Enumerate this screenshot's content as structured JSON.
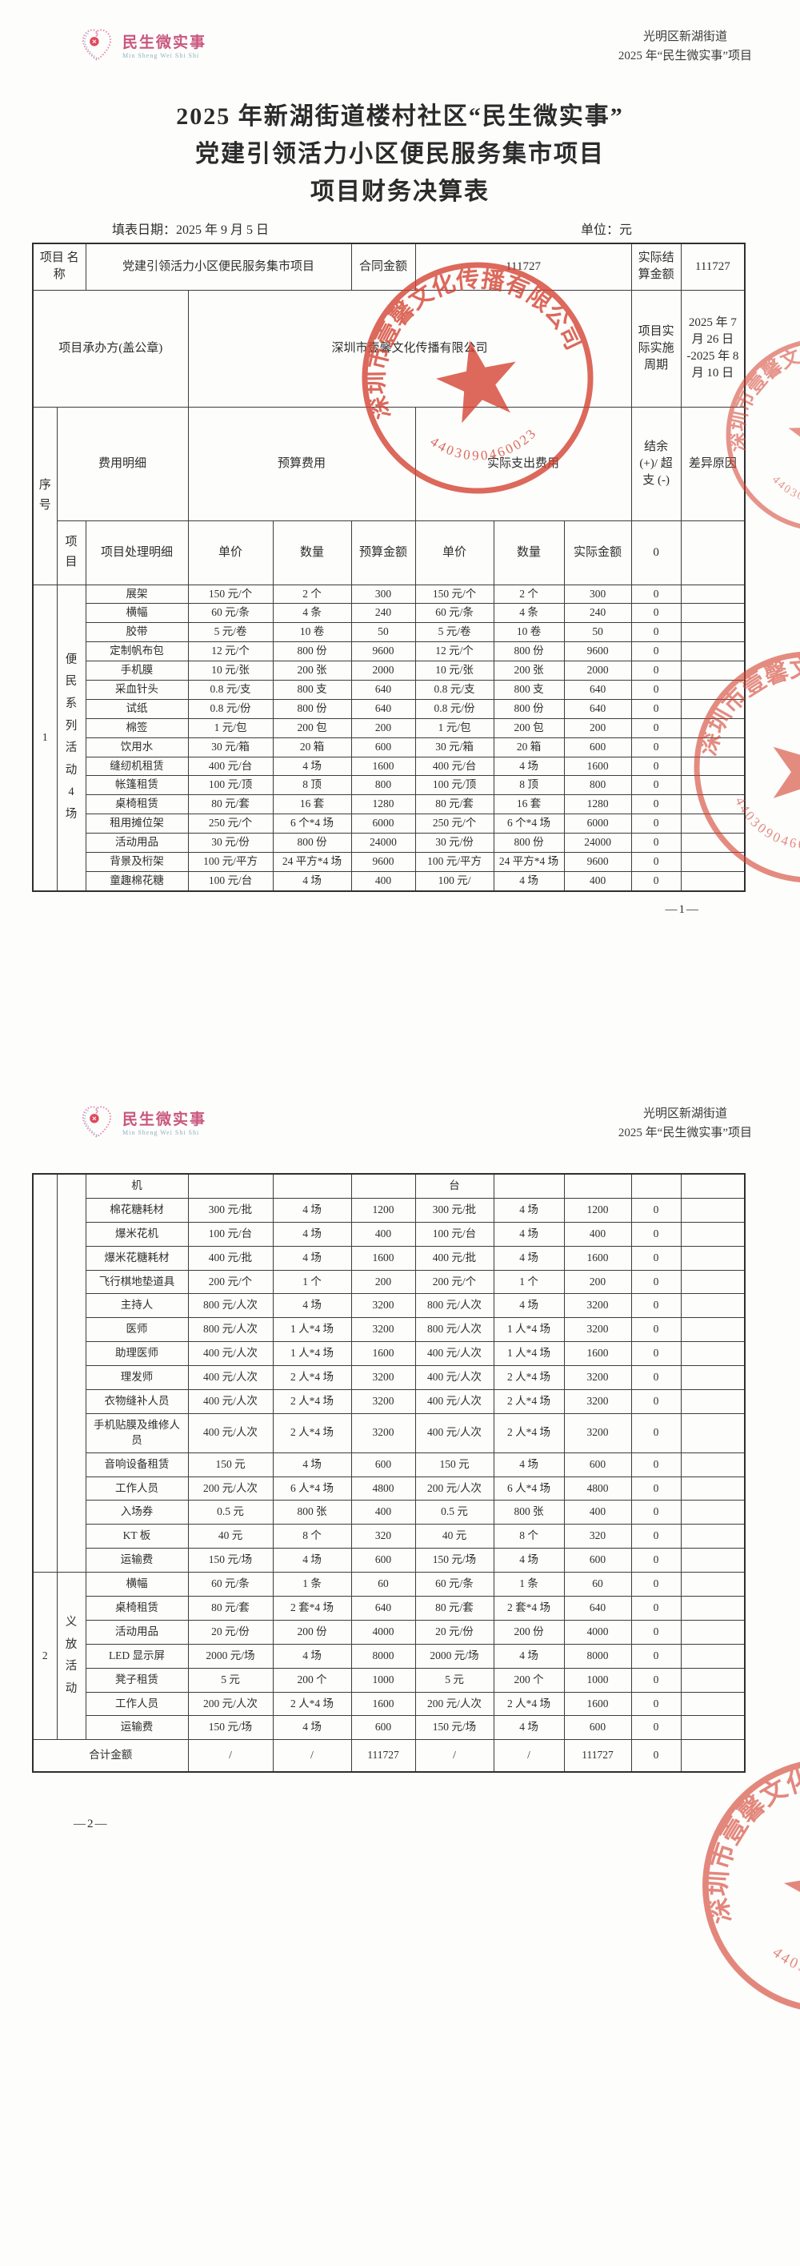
{
  "doc": {
    "org_line1": "光明区新湖街道",
    "org_line2": "2025 年“民生微实事”项目",
    "logo_text": "民生微实事",
    "logo_sub": "Min Sheng Wei Shi Shi",
    "title_line1": "2025 年新湖街道楼村社区“民生微实事”",
    "title_line2": "党建引领活力小区便民服务集市项目",
    "title_line3": "项目财务决算表",
    "fill_date": "填表日期：2025 年 9 月 5 日",
    "unit": "单位：元",
    "page1_number": "—1—",
    "page2_number": "—2—",
    "stamp": {
      "company": "深圳市壹馨文化传播有限公司",
      "serial": "4403090460023",
      "color": "#d4402e"
    }
  },
  "info": {
    "project_name_label": "项目\n名称",
    "project_name": "党建引领活力小区便民服务集市项目",
    "contract_amount_label": "合同金额",
    "contract_amount": "111727",
    "settlement_label": "实际结算金额",
    "settlement_amount": "111727",
    "undertaker_label": "项目承办方(盖公章)",
    "undertaker": "深圳市壹馨文化传播有限公司",
    "period_label": "项目实际实施周期",
    "period": "2025 年 7 月 26 日 -2025 年 8 月 10 日"
  },
  "columns": {
    "seq": "序号",
    "expense_detail": "费用明细",
    "budget_group": "预算费用",
    "actual_group": "实际支出费用",
    "balance": "结余 (+)/ 超支 (-)",
    "reason": "差异原因",
    "item": "项目",
    "item_detail": "项目处理明细",
    "unit_price": "单价",
    "qty": "数量",
    "budget_amount": "预算金额",
    "actual_amount": "实际金额",
    "h2_balance_value": "0"
  },
  "section1": {
    "seq": "1",
    "category": "便民系列活动4场",
    "rows_page1": [
      [
        "展架",
        "150 元/个",
        "2 个",
        "300",
        "150 元/个",
        "2 个",
        "300",
        "0"
      ],
      [
        "横幅",
        "60 元/条",
        "4 条",
        "240",
        "60 元/条",
        "4 条",
        "240",
        "0"
      ],
      [
        "胶带",
        "5 元/卷",
        "10 卷",
        "50",
        "5 元/卷",
        "10 卷",
        "50",
        "0"
      ],
      [
        "定制帆布包",
        "12 元/个",
        "800 份",
        "9600",
        "12 元/个",
        "800 份",
        "9600",
        "0"
      ],
      [
        "手机膜",
        "10 元/张",
        "200 张",
        "2000",
        "10 元/张",
        "200 张",
        "2000",
        "0"
      ],
      [
        "采血针头",
        "0.8 元/支",
        "800 支",
        "640",
        "0.8 元/支",
        "800 支",
        "640",
        "0"
      ],
      [
        "试纸",
        "0.8 元/份",
        "800 份",
        "640",
        "0.8 元/份",
        "800 份",
        "640",
        "0"
      ],
      [
        "棉签",
        "1 元/包",
        "200 包",
        "200",
        "1 元/包",
        "200 包",
        "200",
        "0"
      ],
      [
        "饮用水",
        "30 元/箱",
        "20 箱",
        "600",
        "30 元/箱",
        "20 箱",
        "600",
        "0"
      ],
      [
        "缝纫机租赁",
        "400 元/台",
        "4 场",
        "1600",
        "400 元/台",
        "4 场",
        "1600",
        "0"
      ],
      [
        "帐篷租赁",
        "100 元/顶",
        "8 顶",
        "800",
        "100 元/顶",
        "8 顶",
        "800",
        "0"
      ],
      [
        "桌椅租赁",
        "80 元/套",
        "16 套",
        "1280",
        "80 元/套",
        "16 套",
        "1280",
        "0"
      ],
      [
        "租用摊位架",
        "250 元/个",
        "6 个*4 场",
        "6000",
        "250 元/个",
        "6 个*4 场",
        "6000",
        "0"
      ],
      [
        "活动用品",
        "30 元/份",
        "800 份",
        "24000",
        "30 元/份",
        "800 份",
        "24000",
        "0"
      ],
      [
        "背景及桁架",
        "100 元/平方",
        "24 平方*4 场",
        "9600",
        "100 元/平方",
        "24 平方*4 场",
        "9600",
        "0"
      ],
      [
        "童趣棉花糖",
        "100 元/台",
        "4 场",
        "400",
        "100 元/",
        "4 场",
        "400",
        "0"
      ]
    ],
    "rows_page2": [
      [
        "机",
        "",
        "",
        "",
        "台",
        "",
        "",
        ""
      ],
      [
        "棉花糖耗材",
        "300 元/批",
        "4 场",
        "1200",
        "300 元/批",
        "4 场",
        "1200",
        "0"
      ],
      [
        "爆米花机",
        "100 元/台",
        "4 场",
        "400",
        "100 元/台",
        "4 场",
        "400",
        "0"
      ],
      [
        "爆米花糖耗材",
        "400 元/批",
        "4 场",
        "1600",
        "400 元/批",
        "4 场",
        "1600",
        "0"
      ],
      [
        "飞行棋地垫道具",
        "200 元/个",
        "1 个",
        "200",
        "200 元/个",
        "1 个",
        "200",
        "0"
      ],
      [
        "主持人",
        "800 元/人次",
        "4 场",
        "3200",
        "800 元/人次",
        "4 场",
        "3200",
        "0"
      ],
      [
        "医师",
        "800 元/人次",
        "1 人*4 场",
        "3200",
        "800 元/人次",
        "1 人*4 场",
        "3200",
        "0"
      ],
      [
        "助理医师",
        "400 元/人次",
        "1 人*4 场",
        "1600",
        "400 元/人次",
        "1 人*4 场",
        "1600",
        "0"
      ],
      [
        "理发师",
        "400 元/人次",
        "2 人*4 场",
        "3200",
        "400 元/人次",
        "2 人*4 场",
        "3200",
        "0"
      ],
      [
        "衣物缝补人员",
        "400 元/人次",
        "2 人*4 场",
        "3200",
        "400 元/人次",
        "2 人*4 场",
        "3200",
        "0"
      ],
      [
        "手机贴膜及维修人员",
        "400 元/人次",
        "2 人*4 场",
        "3200",
        "400 元/人次",
        "2 人*4 场",
        "3200",
        "0"
      ],
      [
        "音响设备租赁",
        "150 元",
        "4 场",
        "600",
        "150 元",
        "4 场",
        "600",
        "0"
      ],
      [
        "工作人员",
        "200 元/人次",
        "6 人*4 场",
        "4800",
        "200 元/人次",
        "6 人*4 场",
        "4800",
        "0"
      ],
      [
        "入场券",
        "0.5 元",
        "800 张",
        "400",
        "0.5 元",
        "800 张",
        "400",
        "0"
      ],
      [
        "KT 板",
        "40 元",
        "8 个",
        "320",
        "40 元",
        "8 个",
        "320",
        "0"
      ],
      [
        "运输费",
        "150 元/场",
        "4 场",
        "600",
        "150 元/场",
        "4 场",
        "600",
        "0"
      ]
    ]
  },
  "section2": {
    "seq": "2",
    "category": "义放活动",
    "rows": [
      [
        "横幅",
        "60 元/条",
        "1 条",
        "60",
        "60 元/条",
        "1 条",
        "60",
        "0"
      ],
      [
        "桌椅租赁",
        "80 元/套",
        "2 套*4 场",
        "640",
        "80 元/套",
        "2 套*4 场",
        "640",
        "0"
      ],
      [
        "活动用品",
        "20 元/份",
        "200 份",
        "4000",
        "20 元/份",
        "200 份",
        "4000",
        "0"
      ],
      [
        "LED 显示屏",
        "2000 元/场",
        "4 场",
        "8000",
        "2000 元/场",
        "4 场",
        "8000",
        "0"
      ],
      [
        "凳子租赁",
        "5 元",
        "200 个",
        "1000",
        "5 元",
        "200 个",
        "1000",
        "0"
      ],
      [
        "工作人员",
        "200 元/人次",
        "2 人*4 场",
        "1600",
        "200 元/人次",
        "2 人*4 场",
        "1600",
        "0"
      ],
      [
        "运输费",
        "150 元/场",
        "4 场",
        "600",
        "150 元/场",
        "4 场",
        "600",
        "0"
      ]
    ]
  },
  "total": {
    "label": "合计金额",
    "cells": [
      "/",
      "/",
      "111727",
      "/",
      "/",
      "111727",
      "0",
      ""
    ]
  }
}
